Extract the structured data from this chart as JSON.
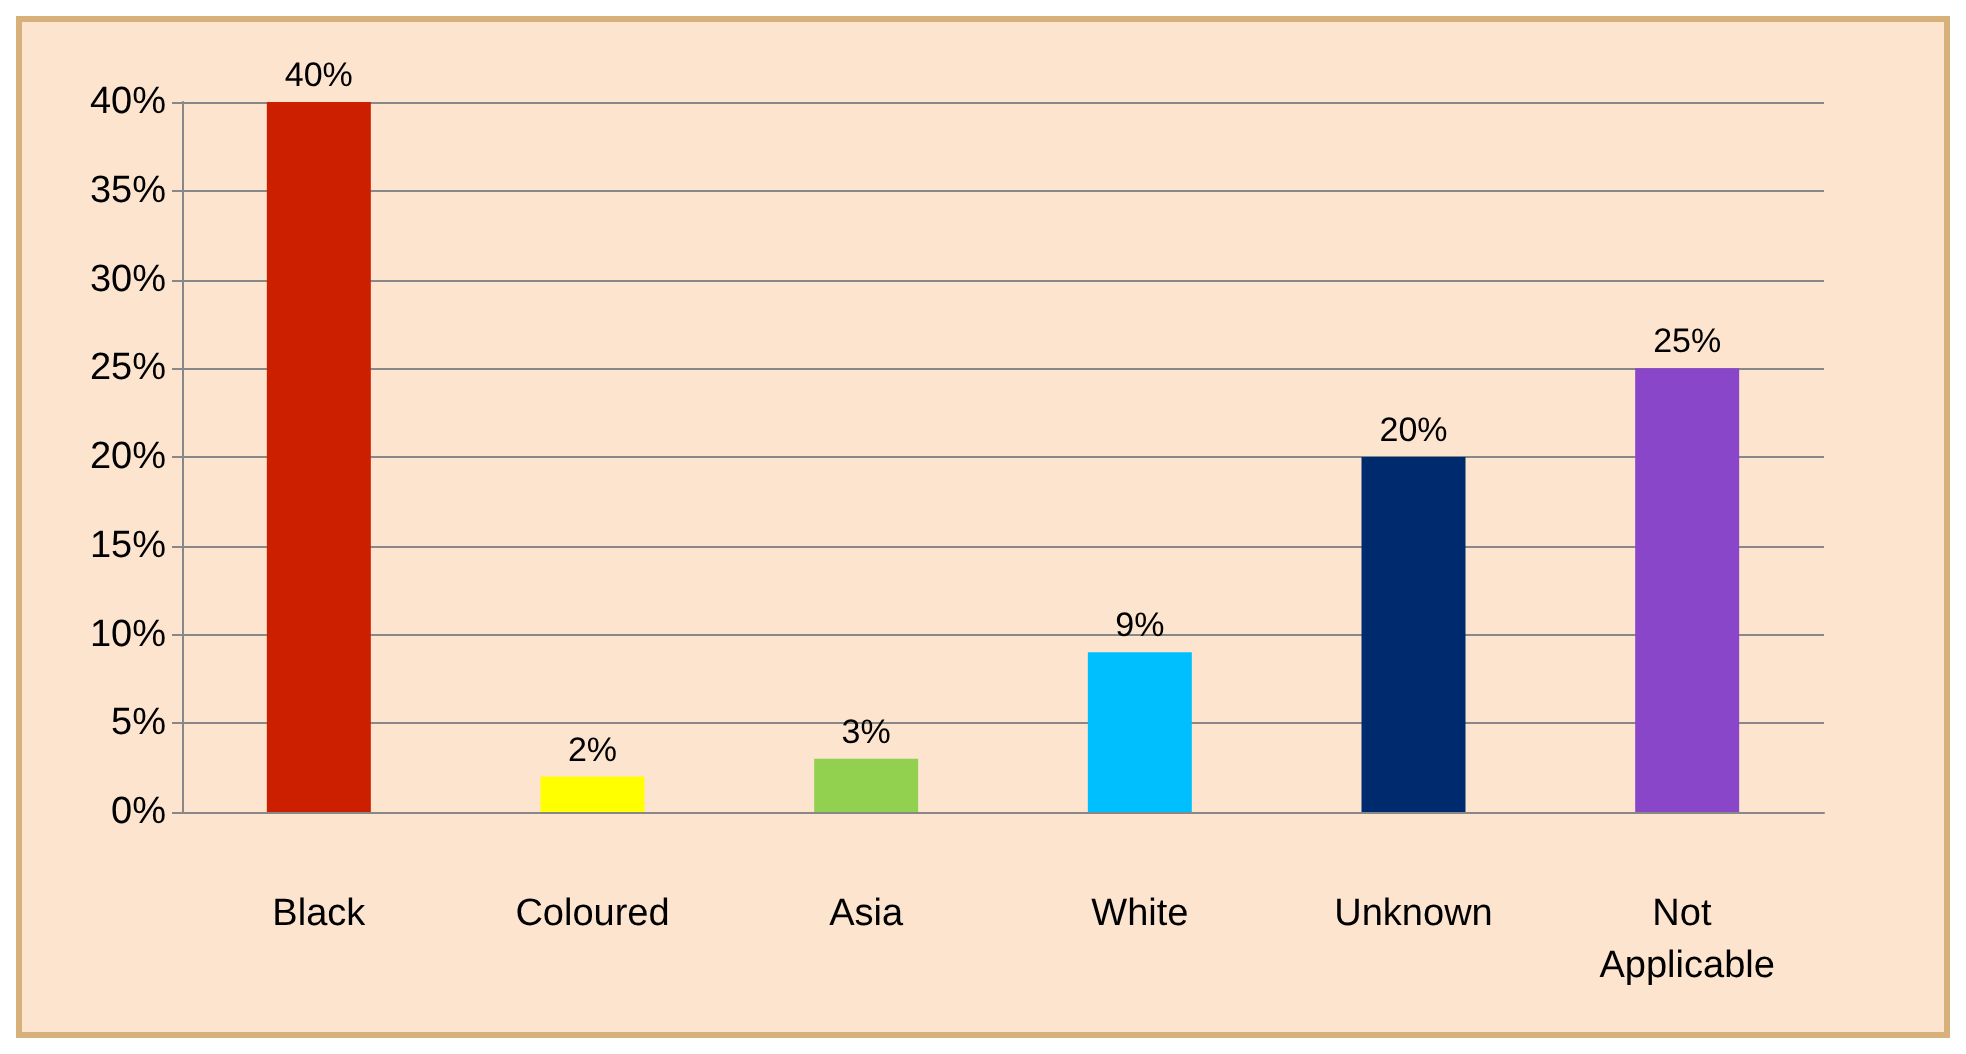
{
  "chart_data": {
    "type": "bar",
    "categories": [
      "Black",
      "Coloured",
      "Asia",
      "White",
      "Unknown",
      "Not Applicable"
    ],
    "values": [
      40,
      2,
      3,
      9,
      20,
      25
    ],
    "colors": [
      "#cc1f00",
      "#ffff00",
      "#92d050",
      "#00bfff",
      "#002a6e",
      "#8a46c8"
    ],
    "value_labels": [
      "40%",
      "2%",
      "3%",
      "9%",
      "20%",
      "25%"
    ],
    "ylim": [
      0,
      40
    ],
    "yticks": [
      {
        "value": 0,
        "label": "0%"
      },
      {
        "value": 5,
        "label": "5%"
      },
      {
        "value": 10,
        "label": "10%"
      },
      {
        "value": 15,
        "label": "15%"
      },
      {
        "value": 20,
        "label": "20%"
      },
      {
        "value": 25,
        "label": "25%"
      },
      {
        "value": 30,
        "label": "30%"
      },
      {
        "value": 35,
        "label": "35%"
      },
      {
        "value": 40,
        "label": "40%"
      }
    ],
    "grid": true
  }
}
